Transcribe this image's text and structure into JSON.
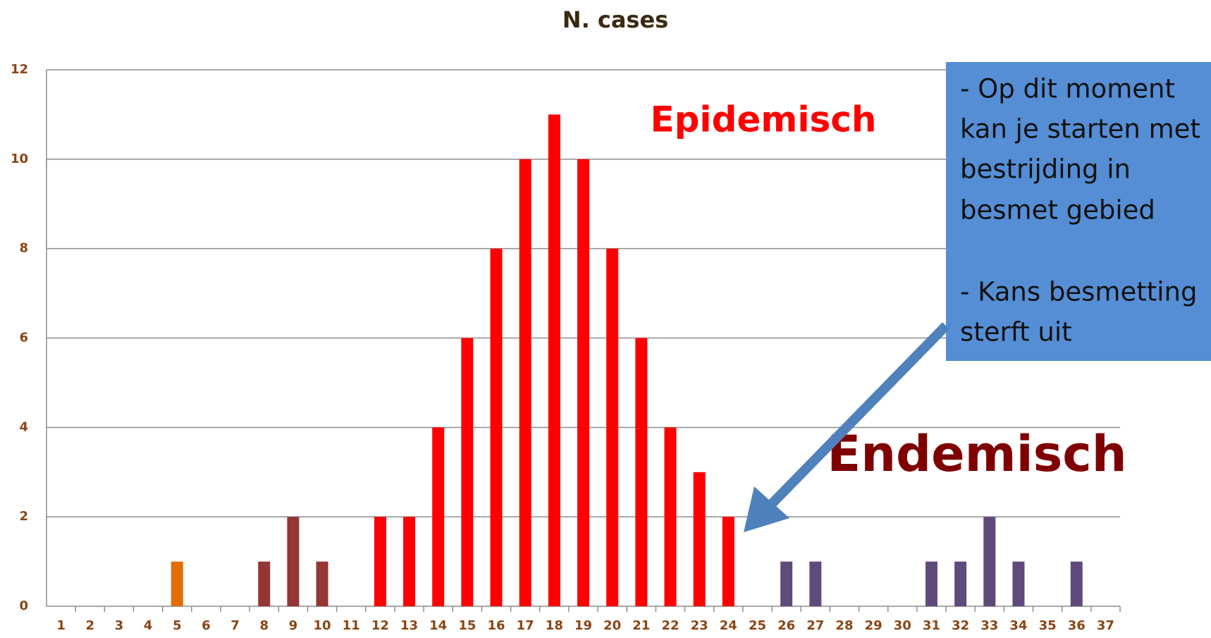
{
  "chart_data": {
    "type": "bar",
    "title": "N. cases",
    "categories": [
      "1",
      "2",
      "3",
      "4",
      "5",
      "6",
      "7",
      "8",
      "9",
      "10",
      "11",
      "12",
      "13",
      "14",
      "15",
      "16",
      "17",
      "18",
      "19",
      "20",
      "21",
      "22",
      "23",
      "24",
      "25",
      "26",
      "27",
      "28",
      "29",
      "30",
      "31",
      "32",
      "33",
      "34",
      "35",
      "36",
      "37"
    ],
    "values": [
      0,
      0,
      0,
      0,
      1,
      0,
      0,
      1,
      2,
      1,
      0,
      2,
      2,
      4,
      6,
      8,
      10,
      11,
      10,
      8,
      6,
      4,
      3,
      2,
      0,
      1,
      1,
      0,
      0,
      0,
      1,
      1,
      2,
      1,
      0,
      1,
      0
    ],
    "colors": [
      null,
      null,
      null,
      null,
      "#e36c09",
      null,
      null,
      "#943634",
      "#943634",
      "#943634",
      null,
      "#ff0000",
      "#ff0000",
      "#ff0000",
      "#ff0000",
      "#ff0000",
      "#ff0000",
      "#ff0000",
      "#ff0000",
      "#ff0000",
      "#ff0000",
      "#ff0000",
      "#ff0000",
      "#ff0000",
      null,
      "#604a7b",
      "#604a7b",
      null,
      null,
      null,
      "#604a7b",
      "#604a7b",
      "#604a7b",
      "#604a7b",
      null,
      "#604a7b",
      null
    ],
    "ylim": [
      0,
      12
    ],
    "yticks": [
      0,
      2,
      4,
      6,
      8,
      10,
      12
    ],
    "grid": true,
    "annotations": {
      "epidemic": "Epidemisch",
      "endemic": "Endemisch",
      "callout": [
        "- Op dit moment",
        "kan je starten met",
        "bestrijding in",
        "besmet gebied",
        "- Kans besmetting",
        "sterft uit"
      ]
    }
  }
}
